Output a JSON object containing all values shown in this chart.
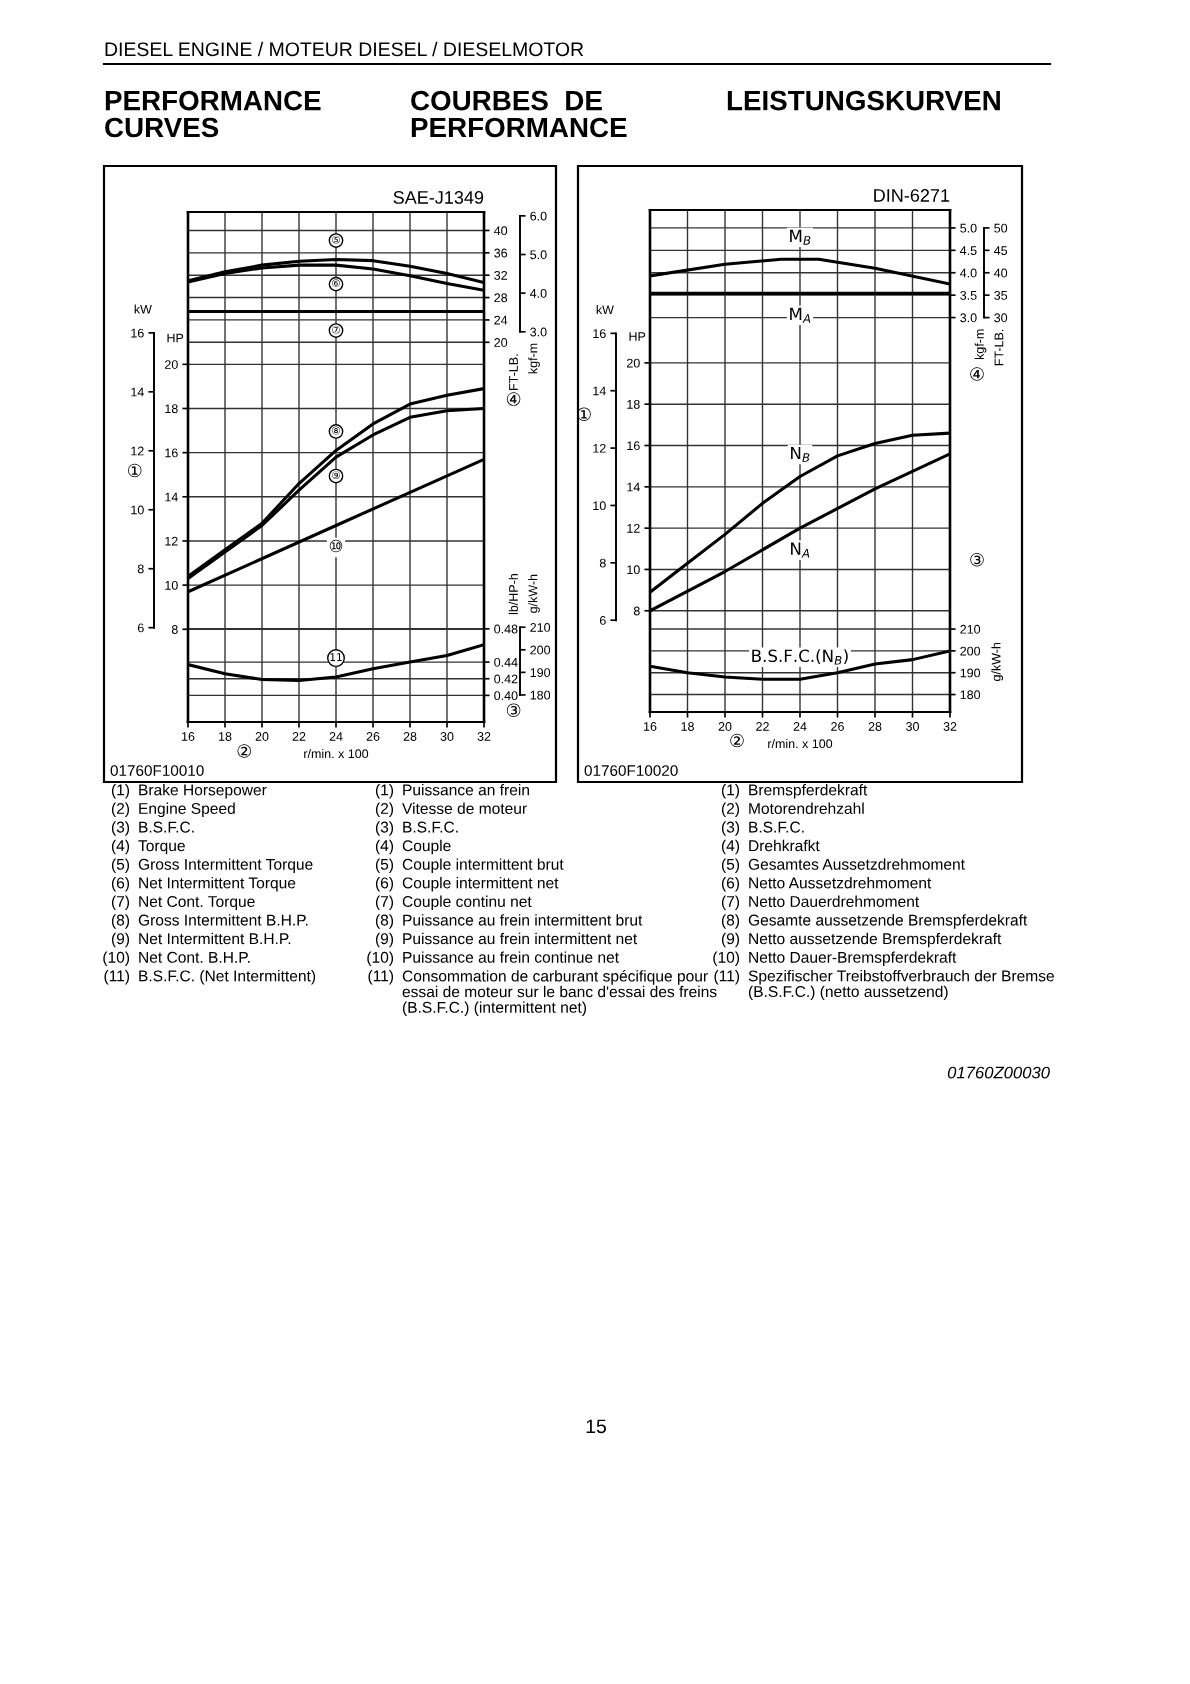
{
  "chart_data": [
    {
      "type": "line",
      "xlabel": "r/min. x 100",
      "ylabel": "HP",
      "y2label": "kW",
      "xlim": [
        16,
        32
      ],
      "xticks": [
        16,
        18,
        20,
        22,
        24,
        26,
        28,
        30,
        32
      ],
      "ylim": [
        3.8,
        26.9
      ],
      "yticks": [
        8,
        10,
        12,
        14,
        16,
        18,
        20
      ],
      "y2lim": [
        2.8,
        20.1
      ],
      "y2ticks": [
        6,
        8,
        10,
        12,
        14,
        16
      ],
      "grid": true,
      "series": [
        {
          "name": "⑧",
          "color": "#000000",
          "x": [
            16,
            18,
            20,
            22,
            24,
            26,
            28,
            30,
            32
          ],
          "values": [
            10.4,
            11.6,
            12.8,
            14.6,
            16.1,
            17.3,
            18.2,
            18.6,
            18.9
          ]
        },
        {
          "name": "⑨",
          "color": "#000000",
          "x": [
            16,
            18,
            20,
            22,
            24,
            26,
            28,
            30,
            32
          ],
          "values": [
            10.3,
            11.5,
            12.7,
            14.3,
            15.8,
            16.8,
            17.6,
            17.9,
            18.0
          ]
        },
        {
          "name": "⑩",
          "color": "#000000",
          "x": [
            16,
            24,
            32
          ],
          "values": [
            9.7,
            12.7,
            15.7
          ]
        }
      ],
      "annotations": [
        "①",
        "②",
        "③",
        "④",
        "01760F10010",
        "DIESEL ENGINE / MOTEUR DIESEL / DIESELMOTOR",
        "PERFORMANCE\nCURVES",
        "COURBES  DE\nPERFORMANCE",
        "LEISTUNGSKURVEN",
        "(1) Brake Horsepower",
        "(2) Engine Speed",
        "(3) B.S.F.C.",
        "(4) Torque",
        "(5) Gross Intermittent Torque",
        "(6) Net Intermittent Torque",
        "(7) Net Cont. Torque",
        "(8) Gross Intermittent B.H.P.",
        "(9) Net Intermittent B.H.P.",
        "(10) Net Cont. B.H.P.",
        "(11) B.S.F.C. (Net Intermittent)",
        "(1) Puissance an frein",
        "(2) Vitesse de moteur",
        "(3) B.S.F.C.",
        "(4) Couple",
        "(5) Couple intermittent brut",
        "(6) Couple intermittent net",
        "(7) Couple continu net",
        "(8) Puissance au frein intermittent brut",
        "(9) Puissance au frein intermittent net",
        "(10) Puissance au frein continue net",
        "(11) Consommation de carburant spécifique pour\nessai de moteur sur le banc d'essai des freins\n(B.S.F.C.) (intermittent net)",
        "(1) Bremspferdekraft",
        "(2) Motorendrehzahl",
        "(3) B.S.F.C.",
        "(4) Drehkrafkt",
        "(5) Gesamtes Aussetzdrehmoment",
        "(6) Netto Aussetzdrehmoment",
        "(7) Netto Dauerdrehmoment",
        "(8) Gesamte aussetzende Bremspferdekraft",
        "(9) Netto aussetzende Bremspferdekraft",
        "(10) Netto Dauer-Bremspferdekraft",
        "(11) Spezifischer Treibstoffverbrauch der Bremse\n(B.S.F.C.) (netto aussetzend)",
        "01760Z00030",
        "15"
      ]
    },
    {
      "type": "line",
      "title": "SAE-J1349",
      "ylabel": "FT-LB.",
      "y2label": "kgf-m",
      "tick_labels": "y",
      "xlim": [
        16,
        32
      ],
      "ylim": [
        -47.9,
        43.3
      ],
      "yticks": [
        20,
        24,
        28,
        32,
        36,
        40
      ],
      "y2lim": [
        -7.1,
        6.1
      ],
      "y2ticks": [
        {
          "value": 3,
          "label": "3.0"
        },
        {
          "value": 4,
          "label": "4.0"
        },
        {
          "value": 5,
          "label": "5.0"
        },
        {
          "value": 6,
          "label": "6.0"
        }
      ],
      "grid": "y",
      "series": [
        {
          "name": "⑤",
          "color": "#000000",
          "x": [
            16,
            18,
            20,
            22,
            24,
            26,
            28,
            30,
            32
          ],
          "values": [
            31.0,
            32.6,
            33.8,
            34.5,
            34.8,
            34.6,
            33.6,
            32.3,
            30.7
          ]
        },
        {
          "name": "⑥",
          "color": "#000000",
          "x": [
            16,
            18,
            20,
            22,
            24,
            26,
            28,
            30,
            32
          ],
          "values": [
            30.8,
            32.3,
            33.3,
            33.8,
            33.8,
            33.1,
            31.9,
            30.5,
            29.3
          ]
        },
        {
          "name": "⑦",
          "color": "#000000",
          "x": [
            16,
            32
          ],
          "values": [
            25.5,
            25.5
          ]
        }
      ]
    },
    {
      "type": "line",
      "ylabel": "lb/HP-h",
      "y2label": "g/kW-h",
      "tick_labels": "y",
      "xlim": [
        16,
        32
      ],
      "ylim": [
        0.368,
        0.981
      ],
      "yticks": [
        {
          "value": 0.4,
          "label": "0.40"
        },
        0.42,
        0.44,
        0.48
      ],
      "y2lim": [
        168,
        394
      ],
      "y2ticks": [
        180,
        190,
        200,
        210
      ],
      "grid": "y",
      "series": [
        {
          "name": "11",
          "color": "#000000",
          "x": [
            16,
            18,
            20,
            22,
            24,
            26,
            28,
            30,
            32
          ],
          "values": [
            0.437,
            0.426,
            0.419,
            0.418,
            0.422,
            0.432,
            0.44,
            0.448,
            0.461
          ]
        }
      ]
    },
    {
      "type": "line",
      "xlabel": "r/min. x 100",
      "ylabel": "HP",
      "y2label": "kW",
      "xlim": [
        16,
        32
      ],
      "xticks": [
        16,
        18,
        20,
        22,
        24,
        26,
        28,
        30,
        32
      ],
      "ylim": [
        3.1,
        27.4
      ],
      "yticks": [
        8,
        10,
        12,
        14,
        16,
        18,
        20
      ],
      "y2lim": [
        2.8,
        20.3
      ],
      "y2ticks": [
        6,
        8,
        10,
        12,
        14,
        16
      ],
      "grid": true,
      "series": [
        {
          "name": "N$_{B}$",
          "color": "#000000",
          "x": [
            16,
            18,
            20,
            22,
            24,
            26,
            28,
            30,
            32
          ],
          "values": [
            8.9,
            10.3,
            11.7,
            13.2,
            14.5,
            15.5,
            16.1,
            16.5,
            16.6
          ]
        },
        {
          "name": "N$_{A}$",
          "color": "#000000",
          "x": [
            16,
            20,
            24,
            28,
            32
          ],
          "values": [
            8.0,
            9.9,
            12.0,
            13.9,
            15.6
          ]
        }
      ],
      "annotations": [
        "①",
        "②",
        "③",
        "④",
        "01760F10020"
      ]
    },
    {
      "type": "line",
      "title": "DIN-6271",
      "ylabel": "kgf-m",
      "y2label": "FT-LB.",
      "tick_labels": "y",
      "xlim": [
        16,
        32
      ],
      "ylim": [
        -5.8,
        5.4
      ],
      "yticks": [
        {
          "value": 3,
          "label": "3.0"
        },
        3.5,
        {
          "value": 4,
          "label": "4.0"
        },
        4.5,
        {
          "value": 5,
          "label": "5.0"
        }
      ],
      "y2lim": [
        -58,
        54
      ],
      "y2ticks": [
        30,
        35,
        40,
        45,
        50
      ],
      "grid": "y",
      "series": [
        {
          "name": "M$_{B}$",
          "color": "#000000",
          "x": [
            16,
            20,
            23,
            25,
            28,
            32
          ],
          "values": [
            3.93,
            4.19,
            4.3,
            4.3,
            4.1,
            3.75
          ]
        },
        {
          "name": "M$_{A}$",
          "color": "#000000",
          "x": [
            16,
            32
          ],
          "values": [
            3.54,
            3.54
          ]
        }
      ]
    },
    {
      "type": "line",
      "ylabel": "g/kW-h",
      "tick_labels": "y",
      "xlim": [
        16,
        32
      ],
      "ylim": [
        172,
        402
      ],
      "yticks": [
        180,
        190,
        200,
        210
      ],
      "grid": "y",
      "series": [
        {
          "name": "B.S.F.C.(N$_{B}$)",
          "color": "#000000",
          "x": [
            16,
            18,
            20,
            22,
            24,
            26,
            28,
            30,
            32
          ],
          "values": [
            193,
            190,
            188,
            187,
            187,
            190,
            194,
            196,
            200
          ]
        }
      ]
    }
  ]
}
